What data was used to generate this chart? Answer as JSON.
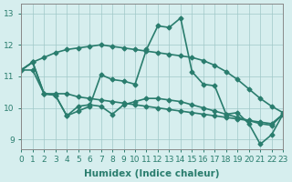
{
  "xlabel": "Humidex (Indice chaleur)",
  "bg_color": "#d6eeee",
  "line_color": "#2a7d6e",
  "grid_color": "#a0c8c8",
  "xlim": [
    0,
    23
  ],
  "ylim": [
    8.7,
    13.3
  ],
  "yticks": [
    9,
    10,
    11,
    12,
    13
  ],
  "xticks": [
    0,
    1,
    2,
    3,
    4,
    5,
    6,
    7,
    8,
    9,
    10,
    11,
    12,
    13,
    14,
    15,
    16,
    17,
    18,
    19,
    20,
    21,
    22,
    23
  ],
  "series1_x": [
    0,
    1,
    2,
    3,
    4,
    5,
    6,
    7,
    8,
    9,
    10,
    11,
    12,
    13,
    14,
    15,
    16,
    17,
    18,
    19,
    20,
    21,
    22,
    23
  ],
  "series1_y": [
    11.2,
    11.45,
    11.6,
    11.75,
    11.85,
    11.9,
    11.95,
    12.0,
    11.95,
    11.9,
    11.85,
    11.8,
    11.75,
    11.7,
    11.65,
    11.6,
    11.5,
    11.35,
    11.15,
    10.9,
    10.6,
    10.3,
    10.05,
    9.85
  ],
  "series2_x": [
    0,
    1,
    2,
    3,
    4,
    5,
    6,
    7,
    8,
    9,
    10,
    11,
    12,
    13,
    14,
    15,
    16,
    17,
    18,
    19,
    20,
    21,
    22,
    23
  ],
  "series2_y": [
    11.2,
    11.45,
    10.45,
    10.4,
    9.75,
    9.9,
    10.05,
    11.05,
    10.9,
    10.85,
    10.75,
    11.85,
    12.6,
    12.55,
    12.85,
    11.15,
    10.75,
    10.7,
    9.8,
    9.85,
    9.5,
    8.85,
    9.15,
    9.8
  ],
  "series3_x": [
    0,
    1,
    2,
    3,
    4,
    5,
    6,
    7,
    8,
    9,
    10,
    11,
    12,
    13,
    14,
    15,
    16,
    17,
    18,
    19,
    20,
    21,
    22,
    23
  ],
  "series3_y": [
    11.2,
    11.45,
    10.45,
    10.4,
    9.75,
    10.05,
    10.1,
    10.05,
    9.8,
    10.1,
    10.2,
    10.3,
    10.3,
    10.25,
    10.2,
    10.1,
    10.0,
    9.9,
    9.8,
    9.7,
    9.6,
    9.5,
    9.45,
    9.8
  ],
  "series4_x": [
    0,
    1,
    2,
    3,
    4,
    5,
    6,
    7,
    8,
    9,
    10,
    11,
    12,
    13,
    14,
    15,
    16,
    17,
    18,
    19,
    20,
    21,
    22,
    23
  ],
  "series4_y": [
    11.2,
    11.2,
    10.45,
    10.45,
    10.45,
    10.35,
    10.3,
    10.25,
    10.2,
    10.15,
    10.1,
    10.05,
    10.0,
    9.95,
    9.9,
    9.85,
    9.8,
    9.75,
    9.7,
    9.65,
    9.6,
    9.55,
    9.5,
    9.8
  ]
}
